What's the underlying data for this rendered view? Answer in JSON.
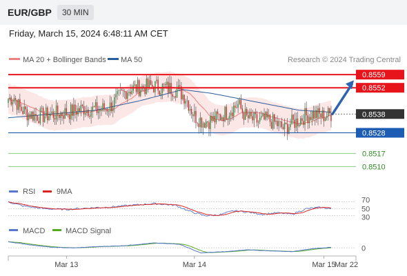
{
  "header": {
    "symbol": "EUR/GBP",
    "timeframe": "30 MIN"
  },
  "datetime": "Friday, March 15, 2024 6:48:11 AM CET",
  "legend": {
    "items": [
      {
        "label": "MA 20 + Bollinger Bands",
        "color": "#f08080"
      },
      {
        "label": "MA 50",
        "color": "#2c5b9a"
      }
    ],
    "credit": "Research © 2024 Trading Central"
  },
  "colors": {
    "resistance": "#e8141b",
    "support": "#1d5cb3",
    "target": "#2e8b22",
    "up": "#2e8b3e",
    "down": "#cc2222"
  },
  "chart_data": [
    {
      "type": "candlestick",
      "panel": "price",
      "y_range": [
        0.8505,
        0.8562
      ],
      "x_ticks": [
        "Mar 13",
        "Mar 14",
        "Mar 15",
        "Mar 22"
      ],
      "levels": [
        {
          "value": "0.8559",
          "kind": "resistance"
        },
        {
          "value": "0.8552",
          "kind": "resistance"
        },
        {
          "value": "0.8538",
          "kind": "current"
        },
        {
          "value": "0.8528",
          "kind": "support"
        },
        {
          "value": "0.8517",
          "kind": "target"
        },
        {
          "value": "0.8510",
          "kind": "target"
        }
      ],
      "forecast_arrow": {
        "from": 0.8538,
        "to": 0.8556,
        "direction": "up"
      },
      "close_anchors": [
        [
          0,
          0.8546
        ],
        [
          4,
          0.8547
        ],
        [
          8,
          0.8541
        ],
        [
          14,
          0.8538
        ],
        [
          22,
          0.8537
        ],
        [
          32,
          0.8538
        ],
        [
          42,
          0.8539
        ],
        [
          52,
          0.8541
        ],
        [
          62,
          0.854
        ],
        [
          70,
          0.8542
        ],
        [
          76,
          0.8547
        ],
        [
          82,
          0.8551
        ],
        [
          90,
          0.8552
        ],
        [
          100,
          0.8553
        ],
        [
          108,
          0.8552
        ],
        [
          116,
          0.8551
        ],
        [
          122,
          0.8547
        ],
        [
          128,
          0.8537
        ],
        [
          134,
          0.8534
        ],
        [
          142,
          0.8535
        ],
        [
          150,
          0.8539
        ],
        [
          158,
          0.8543
        ],
        [
          164,
          0.8536
        ],
        [
          172,
          0.8534
        ],
        [
          178,
          0.8535
        ],
        [
          184,
          0.8533
        ],
        [
          190,
          0.853
        ],
        [
          194,
          0.8533
        ],
        [
          198,
          0.8534
        ],
        [
          204,
          0.8537
        ],
        [
          210,
          0.8538
        ],
        [
          216,
          0.8537
        ],
        [
          222,
          0.8538
        ]
      ],
      "ma50_anchors": [
        [
          0,
          0.8536
        ],
        [
          30,
          0.8538
        ],
        [
          60,
          0.854
        ],
        [
          90,
          0.8545
        ],
        [
          110,
          0.8549
        ],
        [
          120,
          0.8551
        ],
        [
          140,
          0.8549
        ],
        [
          160,
          0.8546
        ],
        [
          180,
          0.8543
        ],
        [
          200,
          0.854
        ],
        [
          222,
          0.8539
        ]
      ],
      "bb_width": 0.0008
    },
    {
      "type": "line",
      "panel": "rsi",
      "series": [
        {
          "name": "RSI"
        },
        {
          "name": "9MA"
        }
      ],
      "y_ticks": [
        "70",
        "50",
        "30"
      ],
      "rsi_anchors": [
        [
          0,
          70
        ],
        [
          10,
          58
        ],
        [
          25,
          50
        ],
        [
          40,
          48
        ],
        [
          55,
          52
        ],
        [
          70,
          55
        ],
        [
          85,
          60
        ],
        [
          100,
          65
        ],
        [
          115,
          60
        ],
        [
          125,
          42
        ],
        [
          135,
          30
        ],
        [
          145,
          32
        ],
        [
          155,
          44
        ],
        [
          165,
          40
        ],
        [
          175,
          34
        ],
        [
          185,
          38
        ],
        [
          195,
          34
        ],
        [
          205,
          50
        ],
        [
          215,
          54
        ],
        [
          222,
          50
        ]
      ]
    },
    {
      "type": "line",
      "panel": "macd",
      "series": [
        {
          "name": "MACD"
        },
        {
          "name": "MACD Signal"
        }
      ],
      "y_ticks": [
        "0"
      ],
      "macd_anchors": [
        [
          0,
          0.0005
        ],
        [
          15,
          0.00025
        ],
        [
          30,
          5e-05
        ],
        [
          45,
          0.0
        ],
        [
          60,
          0.0001
        ],
        [
          80,
          0.00018
        ],
        [
          100,
          0.0004
        ],
        [
          118,
          0.0003
        ],
        [
          132,
          -0.0004
        ],
        [
          150,
          -0.0003
        ],
        [
          165,
          -0.00015
        ],
        [
          180,
          -0.00025
        ],
        [
          195,
          -0.0003
        ],
        [
          210,
          -5e-05
        ],
        [
          222,
          5e-05
        ]
      ]
    }
  ]
}
